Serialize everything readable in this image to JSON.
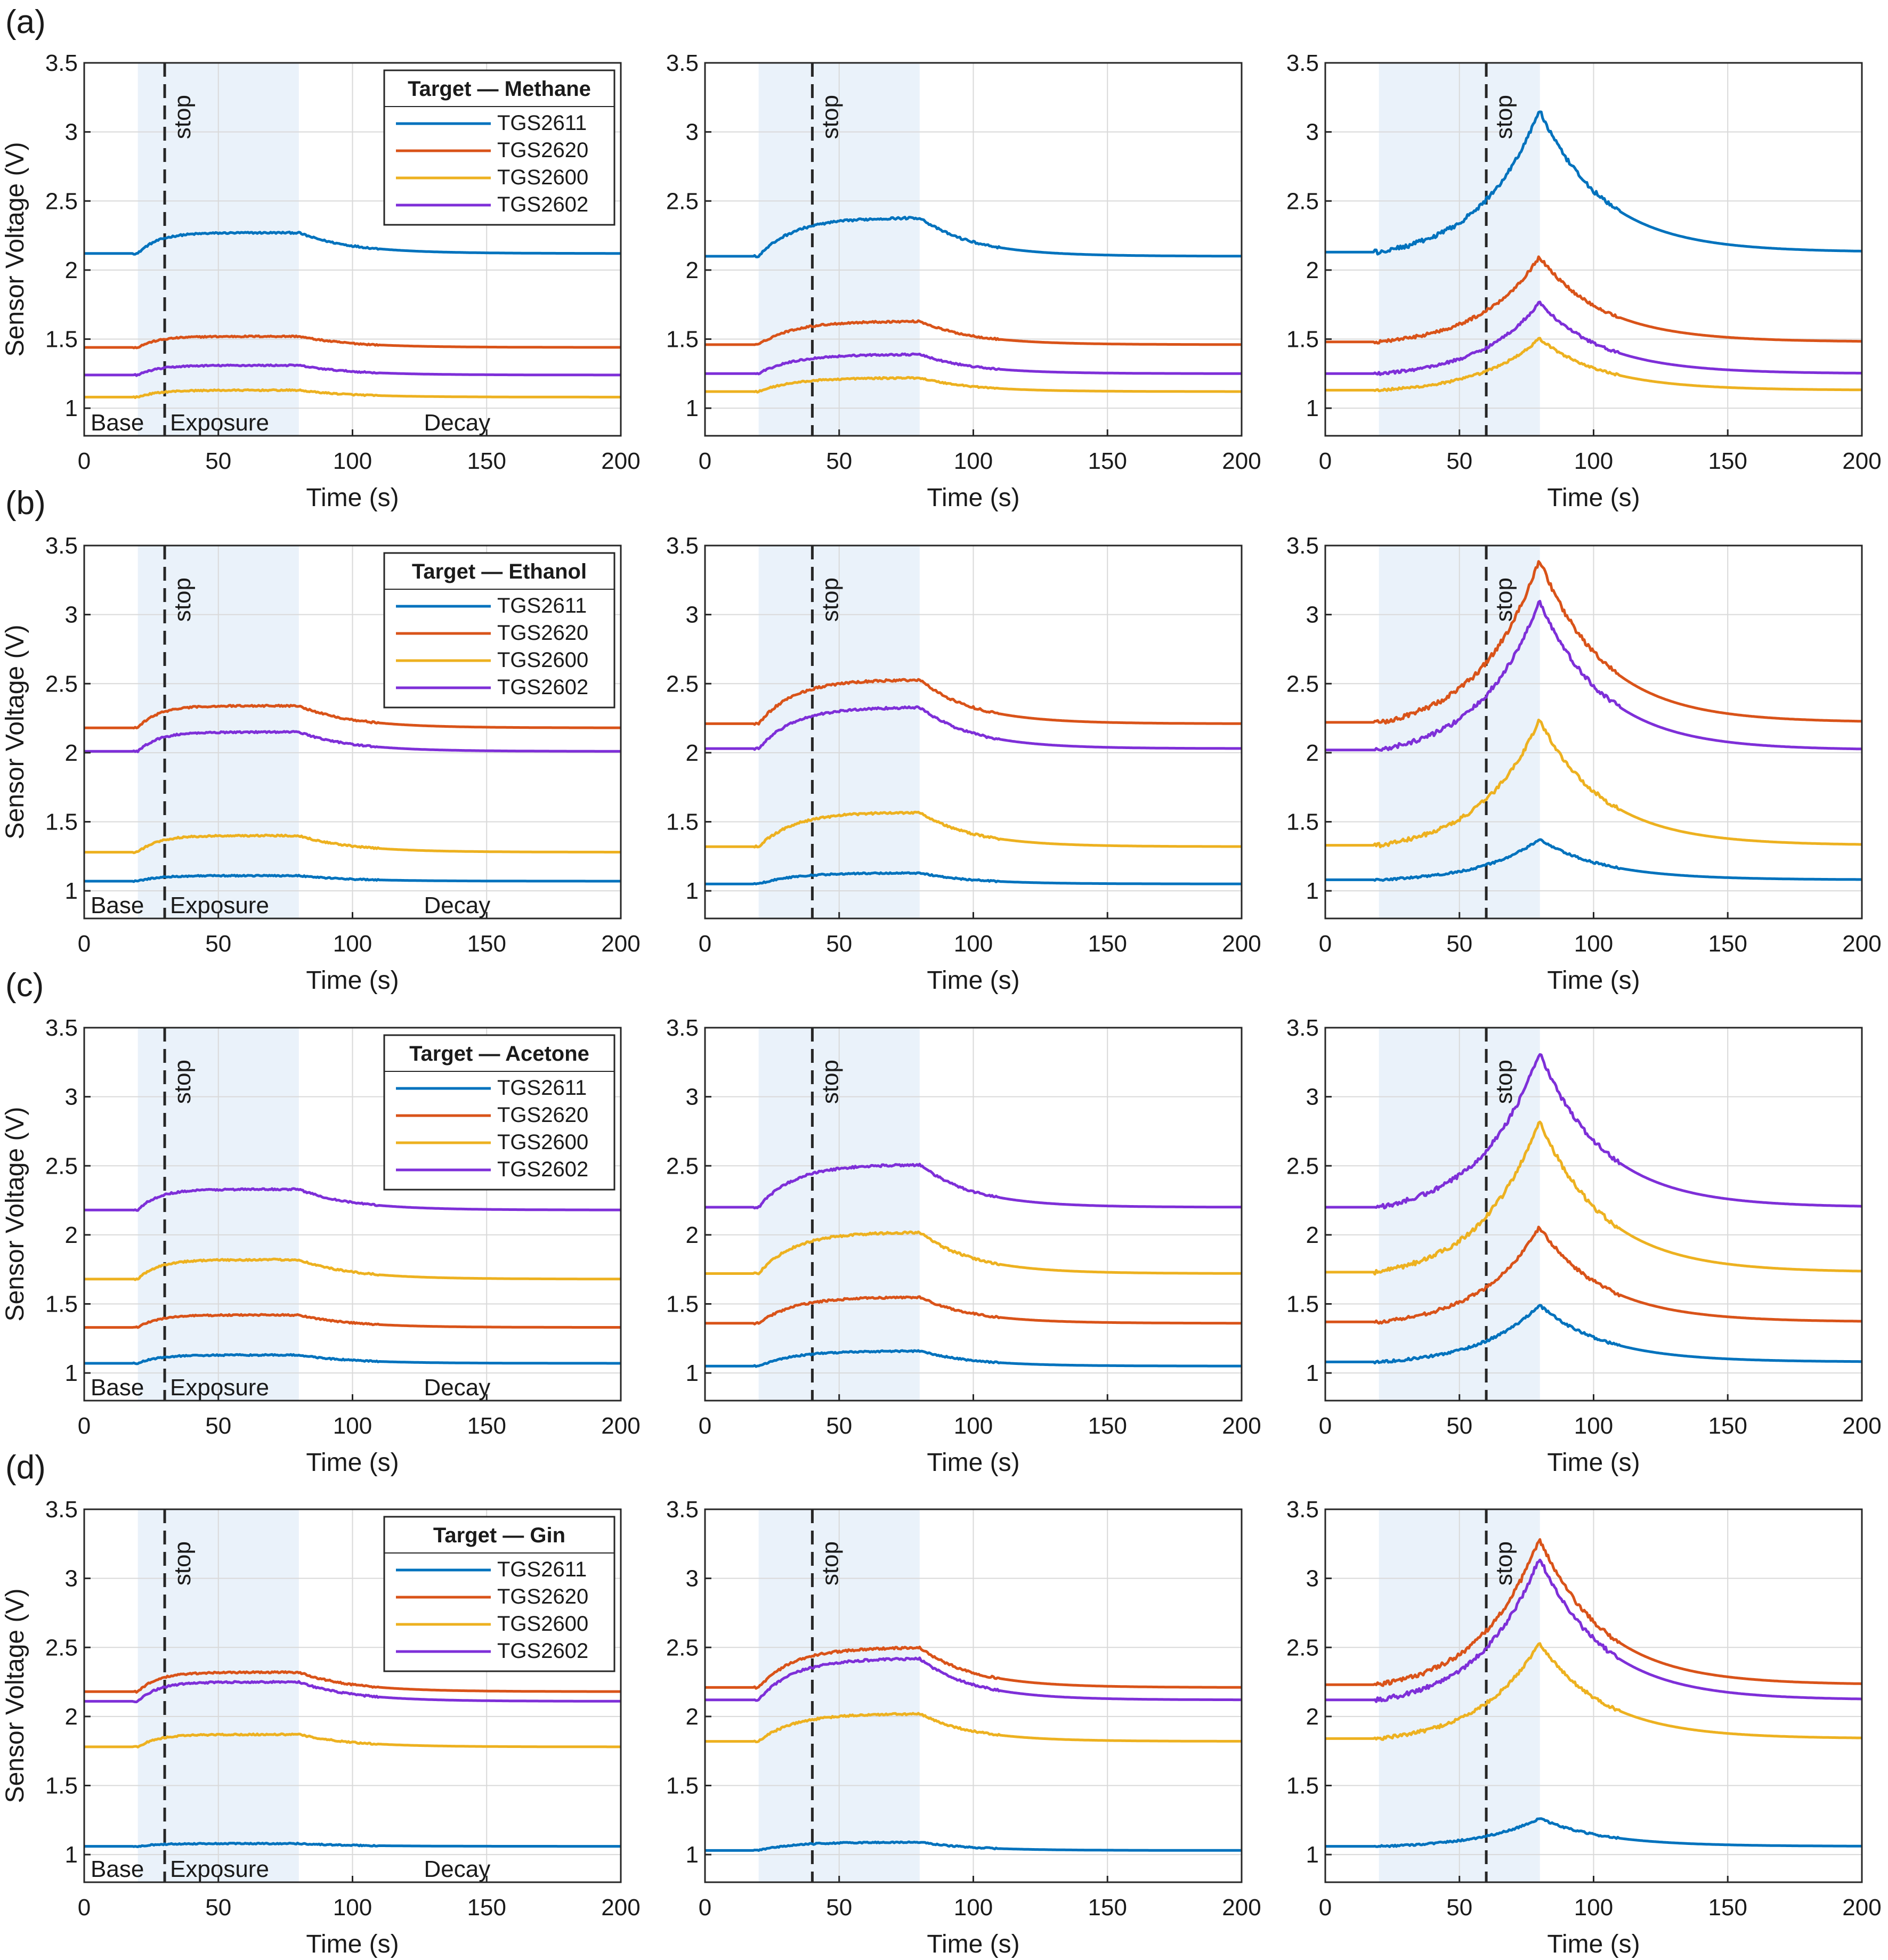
{
  "figure": {
    "row_labels": [
      "(a)",
      "(b)",
      "(c)",
      "(d)"
    ],
    "region_labels": {
      "base": "Base",
      "exposure": "Exposure",
      "decay": "Decay"
    },
    "stop_label": "stop",
    "legend_title_prefix": "Target — ",
    "colors": {
      "TGS2611": "#0072BD",
      "TGS2620": "#D95319",
      "TGS2600": "#EDB120",
      "TGS2602": "#7E2FD8",
      "exposure_shade": "#EAF2FA",
      "grid": "#d9d9d9",
      "axis": "#262626"
    }
  },
  "chart_data": {
    "type": "line",
    "layout": "4 rows x 3 columns",
    "xlabel": "Time (s)",
    "ylabel": "Sensor Voltage (V)",
    "xlim": [
      0,
      200
    ],
    "ylim": [
      0.8,
      3.5
    ],
    "xticks": [
      0,
      50,
      100,
      150,
      200
    ],
    "yticks": [
      1,
      1.5,
      2,
      2.5,
      3,
      3.5
    ],
    "grid": true,
    "exposure_window": [
      20,
      80
    ],
    "stop_times": [
      30,
      40,
      60
    ],
    "legend_location": "top-right of first column",
    "series_names": [
      "TGS2611",
      "TGS2620",
      "TGS2600",
      "TGS2602"
    ],
    "rows": [
      {
        "target": "Methane",
        "panels": [
          {
            "stop": 30,
            "baseline": {
              "TGS2611": 2.12,
              "TGS2620": 1.44,
              "TGS2600": 1.08,
              "TGS2602": 1.24
            },
            "peak": {
              "TGS2611": 2.27,
              "TGS2620": 1.52,
              "TGS2600": 1.13,
              "TGS2602": 1.31
            }
          },
          {
            "stop": 40,
            "baseline": {
              "TGS2611": 2.1,
              "TGS2620": 1.46,
              "TGS2600": 1.12,
              "TGS2602": 1.25
            },
            "peak": {
              "TGS2611": 2.38,
              "TGS2620": 1.63,
              "TGS2600": 1.22,
              "TGS2602": 1.39
            }
          },
          {
            "stop": 60,
            "baseline": {
              "TGS2611": 2.13,
              "TGS2620": 1.48,
              "TGS2600": 1.13,
              "TGS2602": 1.25
            },
            "peak": {
              "TGS2611": 3.15,
              "TGS2620": 2.09,
              "TGS2600": 1.5,
              "TGS2602": 1.76
            }
          }
        ]
      },
      {
        "target": "Ethanol",
        "panels": [
          {
            "stop": 30,
            "baseline": {
              "TGS2611": 1.07,
              "TGS2620": 2.18,
              "TGS2600": 1.28,
              "TGS2602": 2.01
            },
            "peak": {
              "TGS2611": 1.11,
              "TGS2620": 2.34,
              "TGS2600": 1.4,
              "TGS2602": 2.15
            }
          },
          {
            "stop": 40,
            "baseline": {
              "TGS2611": 1.05,
              "TGS2620": 2.21,
              "TGS2600": 1.32,
              "TGS2602": 2.03
            },
            "peak": {
              "TGS2611": 1.13,
              "TGS2620": 2.53,
              "TGS2600": 1.57,
              "TGS2602": 2.33
            }
          },
          {
            "stop": 60,
            "baseline": {
              "TGS2611": 1.08,
              "TGS2620": 2.22,
              "TGS2600": 1.33,
              "TGS2602": 2.02
            },
            "peak": {
              "TGS2611": 1.37,
              "TGS2620": 3.39,
              "TGS2600": 2.23,
              "TGS2602": 3.09
            }
          }
        ]
      },
      {
        "target": "Acetone",
        "panels": [
          {
            "stop": 30,
            "baseline": {
              "TGS2611": 1.07,
              "TGS2620": 1.33,
              "TGS2600": 1.68,
              "TGS2602": 2.18
            },
            "peak": {
              "TGS2611": 1.13,
              "TGS2620": 1.42,
              "TGS2600": 1.82,
              "TGS2602": 2.33
            }
          },
          {
            "stop": 40,
            "baseline": {
              "TGS2611": 1.05,
              "TGS2620": 1.36,
              "TGS2600": 1.72,
              "TGS2602": 2.2
            },
            "peak": {
              "TGS2611": 1.16,
              "TGS2620": 1.55,
              "TGS2600": 2.02,
              "TGS2602": 2.51
            }
          },
          {
            "stop": 60,
            "baseline": {
              "TGS2611": 1.08,
              "TGS2620": 1.37,
              "TGS2600": 1.73,
              "TGS2602": 2.2
            },
            "peak": {
              "TGS2611": 1.49,
              "TGS2620": 2.05,
              "TGS2600": 2.82,
              "TGS2602": 3.31
            }
          }
        ]
      },
      {
        "target": "Gin",
        "panels": [
          {
            "stop": 30,
            "baseline": {
              "TGS2611": 1.06,
              "TGS2620": 2.18,
              "TGS2600": 1.78,
              "TGS2602": 2.11
            },
            "peak": {
              "TGS2611": 1.08,
              "TGS2620": 2.32,
              "TGS2600": 1.87,
              "TGS2602": 2.25
            }
          },
          {
            "stop": 40,
            "baseline": {
              "TGS2611": 1.03,
              "TGS2620": 2.21,
              "TGS2600": 1.82,
              "TGS2602": 2.12
            },
            "peak": {
              "TGS2611": 1.09,
              "TGS2620": 2.5,
              "TGS2600": 2.02,
              "TGS2602": 2.42
            }
          },
          {
            "stop": 60,
            "baseline": {
              "TGS2611": 1.06,
              "TGS2620": 2.23,
              "TGS2600": 1.84,
              "TGS2602": 2.12
            },
            "peak": {
              "TGS2611": 1.26,
              "TGS2620": 3.28,
              "TGS2600": 2.53,
              "TGS2602": 3.14
            }
          }
        ]
      }
    ]
  }
}
